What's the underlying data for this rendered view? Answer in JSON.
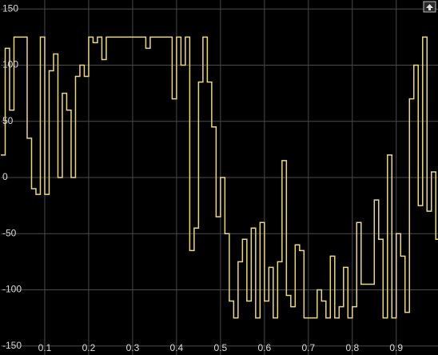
{
  "chart_data": {
    "type": "line",
    "drawstyle": "steps-post",
    "x": [
      0.0,
      0.01,
      0.02,
      0.03,
      0.04,
      0.05,
      0.06,
      0.07,
      0.08,
      0.09,
      0.1,
      0.11,
      0.12,
      0.13,
      0.14,
      0.15,
      0.16,
      0.17,
      0.18,
      0.19,
      0.2,
      0.21,
      0.22,
      0.23,
      0.24,
      0.25,
      0.26,
      0.27,
      0.28,
      0.29,
      0.3,
      0.31,
      0.32,
      0.33,
      0.34,
      0.35,
      0.36,
      0.37,
      0.38,
      0.39,
      0.4,
      0.41,
      0.42,
      0.43,
      0.44,
      0.45,
      0.46,
      0.47,
      0.48,
      0.49,
      0.5,
      0.51,
      0.52,
      0.53,
      0.54,
      0.55,
      0.56,
      0.57,
      0.58,
      0.59,
      0.6,
      0.61,
      0.62,
      0.63,
      0.64,
      0.65,
      0.66,
      0.67,
      0.68,
      0.69,
      0.7,
      0.71,
      0.72,
      0.73,
      0.74,
      0.75,
      0.76,
      0.77,
      0.78,
      0.79,
      0.8,
      0.81,
      0.82,
      0.83,
      0.84,
      0.85,
      0.86,
      0.87,
      0.88,
      0.89,
      0.9,
      0.91,
      0.92,
      0.93,
      0.94,
      0.95,
      0.96,
      0.97,
      0.98,
      0.99
    ],
    "values": [
      20,
      115,
      60,
      125,
      125,
      125,
      35,
      -10,
      -15,
      125,
      -15,
      95,
      110,
      0,
      75,
      60,
      0,
      90,
      100,
      90,
      125,
      120,
      125,
      105,
      125,
      125,
      125,
      125,
      125,
      125,
      125,
      125,
      125,
      115,
      125,
      125,
      125,
      125,
      125,
      70,
      125,
      100,
      125,
      -65,
      -45,
      85,
      125,
      85,
      45,
      -35,
      0,
      -50,
      -110,
      -125,
      -75,
      -55,
      -110,
      -45,
      -125,
      -40,
      -110,
      -80,
      -125,
      -75,
      15,
      -105,
      -115,
      -60,
      -65,
      -125,
      -125,
      -125,
      -100,
      -110,
      -125,
      -70,
      -125,
      -115,
      -80,
      -125,
      -115,
      -40,
      -95,
      -95,
      -95,
      -20,
      -55,
      -125,
      20,
      -125,
      -50,
      -70,
      -120,
      70,
      100,
      -25,
      125,
      -30,
      5,
      -55
    ],
    "color": "#ecd878",
    "xlim": [
      0,
      0.995
    ],
    "ylim": [
      -158,
      158
    ],
    "xticks": [
      0.1,
      0.2,
      0.3,
      0.4,
      0.5,
      0.6,
      0.7,
      0.8,
      0.9
    ],
    "yticks": [
      -150,
      -100,
      -50,
      0,
      50,
      100,
      150
    ],
    "grid": true
  }
}
